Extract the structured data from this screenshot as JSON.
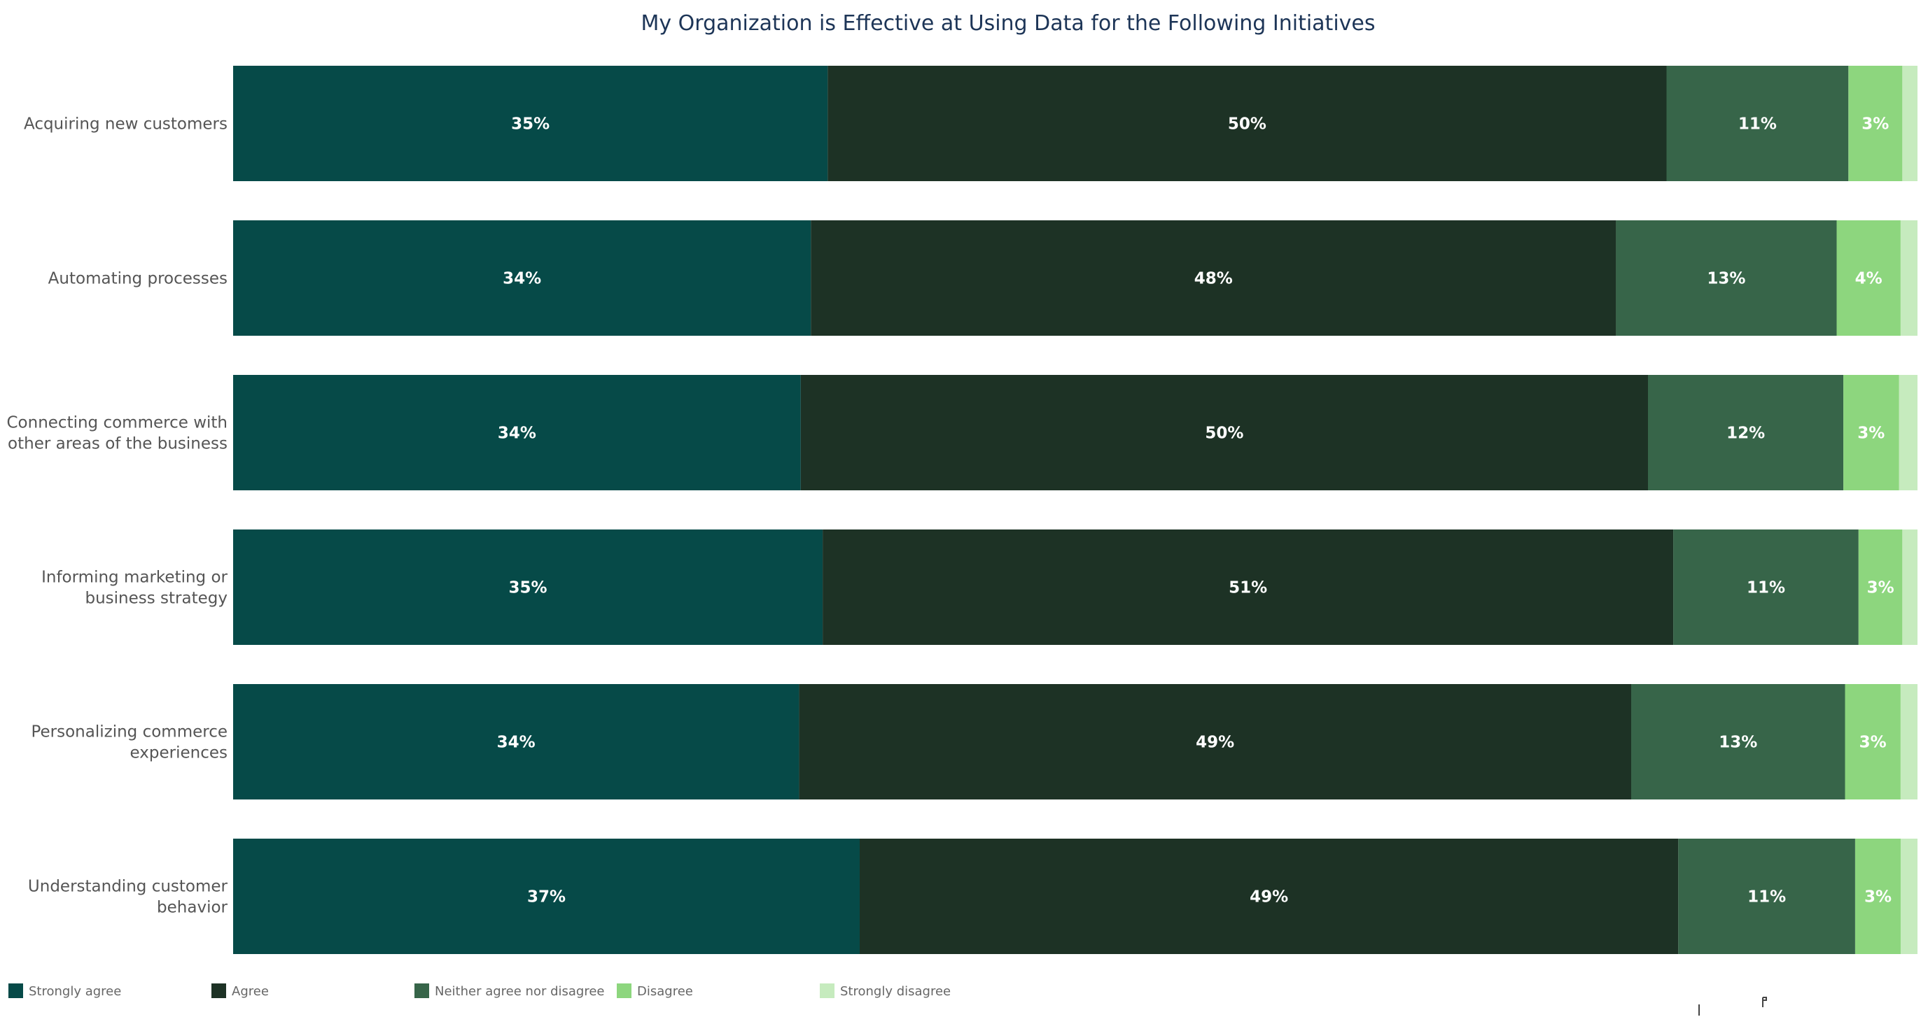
{
  "chart_data": {
    "type": "bar",
    "orientation": "horizontal",
    "stacked": true,
    "title": "My Organization is Effective at Using Data for the Following Initiatives",
    "xlabel": "",
    "ylabel": "",
    "xlim": [
      0,
      100
    ],
    "grid": false,
    "legend_position": "bottom-left",
    "categories": [
      [
        "Acquiring new customers"
      ],
      [
        "Automating processes"
      ],
      [
        "Connecting commerce with",
        "other areas of the business"
      ],
      [
        "Informing marketing or",
        "business strategy"
      ],
      [
        "Personalizing commerce",
        "experiences"
      ],
      [
        "Understanding customer",
        "behavior"
      ]
    ],
    "series": [
      {
        "name": "Strongly agree",
        "color": "#064a48",
        "values": [
          35.3,
          34.3,
          33.7,
          35.0,
          33.6,
          37.2
        ],
        "labels": [
          "35%",
          "34%",
          "34%",
          "35%",
          "34%",
          "37%"
        ]
      },
      {
        "name": "Agree",
        "color": "#1d3225",
        "values": [
          49.8,
          47.8,
          50.3,
          50.5,
          49.4,
          48.6
        ],
        "labels": [
          "50%",
          "48%",
          "50%",
          "51%",
          "49%",
          "49%"
        ]
      },
      {
        "name": "Neither agree nor disagree",
        "color": "#376549",
        "values": [
          10.8,
          13.1,
          11.6,
          11.0,
          12.7,
          10.5
        ],
        "labels": [
          "11%",
          "13%",
          "12%",
          "11%",
          "13%",
          "11%"
        ]
      },
      {
        "name": "Disagree",
        "color": "#8dd67e",
        "values": [
          3.2,
          3.8,
          3.3,
          2.6,
          3.3,
          2.7
        ],
        "labels": [
          "3%",
          "4%",
          "3%",
          "3%",
          "3%",
          "3%"
        ]
      },
      {
        "name": "Strongly disagree",
        "color": "#c6ebbe",
        "values": [
          0.9,
          1.0,
          1.1,
          0.9,
          1.0,
          1.0
        ],
        "labels": [
          "",
          "",
          "",
          "",
          "",
          ""
        ]
      }
    ]
  }
}
